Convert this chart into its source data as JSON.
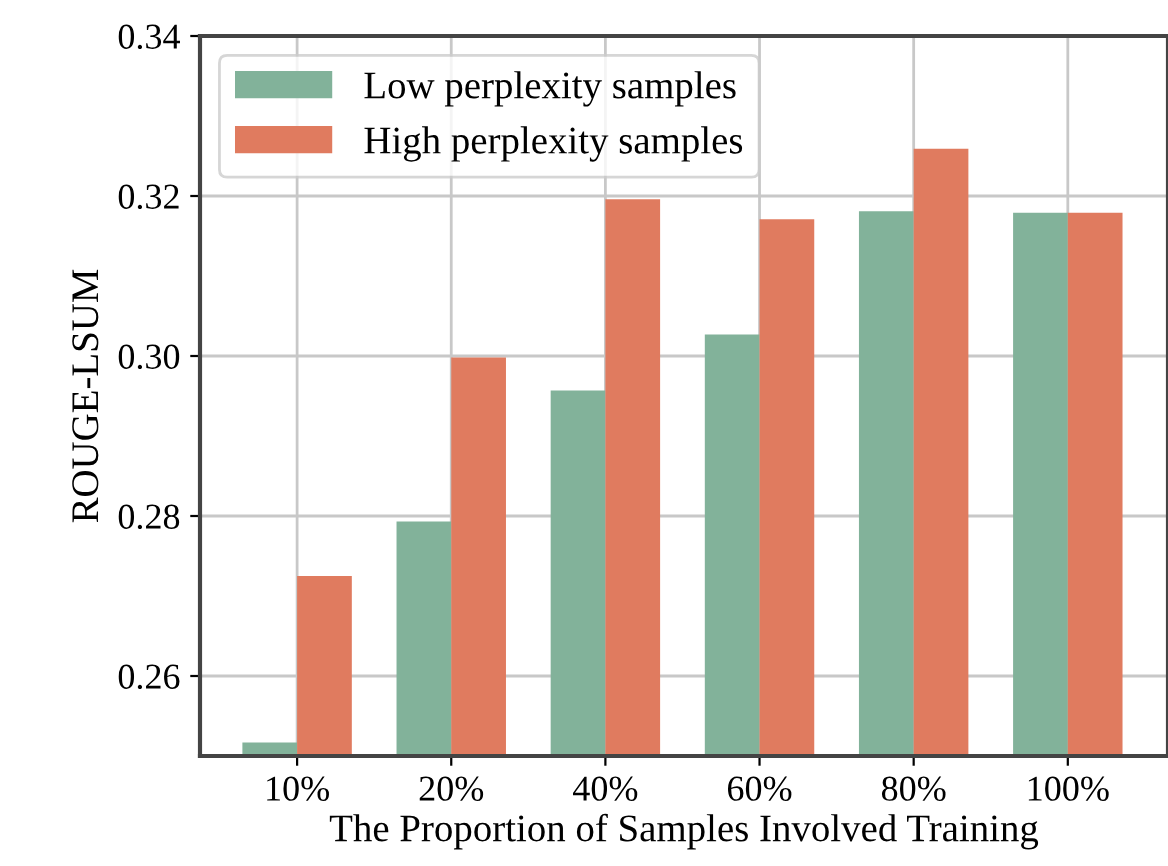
{
  "chart_data": {
    "type": "bar",
    "xlabel": "The Proportion of Samples Involved Training",
    "ylabel": "ROUGE-LSUM",
    "categories": [
      "10%",
      "20%",
      "40%",
      "60%",
      "80%",
      "100%"
    ],
    "series": [
      {
        "name": "Low perplexity samples",
        "color": "#82b29a",
        "values": [
          0.2517,
          0.2793,
          0.2957,
          0.3027,
          0.3181,
          0.3179
        ]
      },
      {
        "name": "High perplexity samples",
        "color": "#e07b5f",
        "values": [
          0.2725,
          0.2998,
          0.3196,
          0.3171,
          0.3259,
          0.3179
        ]
      }
    ],
    "ylim": [
      0.25,
      0.34
    ],
    "yticks": [
      {
        "value": 0.26,
        "label": "0.26"
      },
      {
        "value": 0.28,
        "label": "0.28"
      },
      {
        "value": 0.3,
        "label": "0.30"
      },
      {
        "value": 0.32,
        "label": "0.32"
      },
      {
        "value": 0.34,
        "label": "0.34"
      }
    ],
    "grid": true,
    "legend": "top left"
  }
}
